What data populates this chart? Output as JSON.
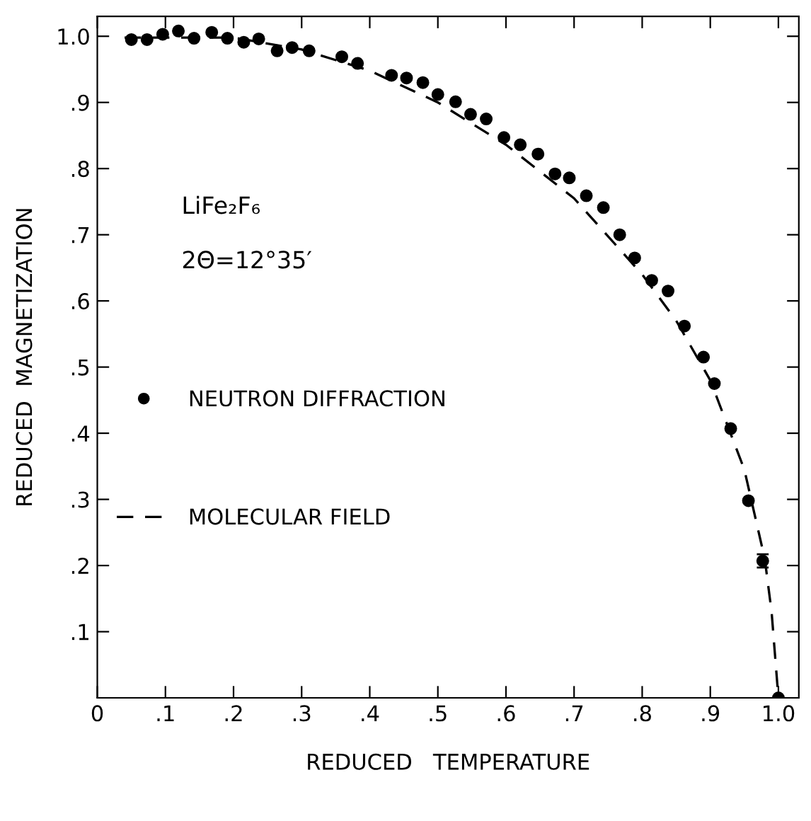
{
  "chart_data": {
    "type": "scatter",
    "xlabel": "REDUCED   TEMPERATURE",
    "ylabel": "REDUCED  MAGNETIZATION",
    "xlim": [
      0,
      1.03
    ],
    "ylim": [
      0,
      1.03
    ],
    "xticks": [
      0,
      {
        "value": 0.1,
        "label": ".1"
      },
      {
        "value": 0.2,
        "label": ".2"
      },
      {
        "value": 0.3,
        "label": ".3"
      },
      {
        "value": 0.4,
        "label": ".4"
      },
      {
        "value": 0.5,
        "label": ".5"
      },
      {
        "value": 0.6,
        "label": ".6"
      },
      {
        "value": 0.7,
        "label": ".7"
      },
      {
        "value": 0.8,
        "label": ".8"
      },
      {
        "value": 0.9,
        "label": ".9"
      },
      {
        "value": 1.0,
        "label": "1.0"
      }
    ],
    "yticks": [
      {
        "value": 0.1,
        "label": ".1"
      },
      {
        "value": 0.2,
        "label": ".2"
      },
      {
        "value": 0.3,
        "label": ".3"
      },
      {
        "value": 0.4,
        "label": ".4"
      },
      {
        "value": 0.5,
        "label": ".5"
      },
      {
        "value": 0.6,
        "label": ".6"
      },
      {
        "value": 0.7,
        "label": ".7"
      },
      {
        "value": 0.8,
        "label": ".8"
      },
      {
        "value": 0.9,
        "label": ".9"
      },
      {
        "value": 1.0,
        "label": "1.0"
      }
    ],
    "grid": false,
    "legend": "left",
    "annotations": [
      "LiFe₂F₆",
      "2Θ=12°35′"
    ],
    "series": [
      {
        "name": "NEUTRON DIFFRACTION",
        "color": "#000000",
        "marker": "circle",
        "x": [
          0.05,
          0.073,
          0.096,
          0.119,
          0.142,
          0.168,
          0.191,
          0.215,
          0.237,
          0.264,
          0.286,
          0.311,
          0.359,
          0.382,
          0.432,
          0.454,
          0.478,
          0.5,
          0.526,
          0.548,
          0.571,
          0.597,
          0.621,
          0.647,
          0.672,
          0.693,
          0.718,
          0.743,
          0.767,
          0.789,
          0.814,
          0.838,
          0.862,
          0.89,
          0.906,
          0.93,
          0.956,
          0.977,
          1.0
        ],
        "values": [
          0.995,
          0.995,
          1.003,
          1.008,
          0.997,
          1.006,
          0.997,
          0.991,
          0.996,
          0.978,
          0.983,
          0.978,
          0.969,
          0.959,
          0.941,
          0.937,
          0.93,
          0.912,
          0.901,
          0.882,
          0.875,
          0.847,
          0.836,
          0.822,
          0.792,
          0.786,
          0.759,
          0.741,
          0.7,
          0.665,
          0.631,
          0.615,
          0.562,
          0.515,
          0.475,
          0.407,
          0.298,
          0.207,
          0.0
        ],
        "errors": [
          null,
          null,
          null,
          null,
          null,
          null,
          null,
          null,
          null,
          null,
          null,
          null,
          null,
          null,
          null,
          null,
          null,
          null,
          null,
          null,
          null,
          null,
          null,
          null,
          null,
          null,
          null,
          null,
          null,
          null,
          null,
          null,
          null,
          null,
          null,
          null,
          null,
          0.01,
          null
        ]
      },
      {
        "name": "MOLECULAR FIELD",
        "type": "line",
        "color": "#000000",
        "line_style": "dashed",
        "marker": "none",
        "x": [
          0.04,
          0.2,
          0.3,
          0.4,
          0.5,
          0.6,
          0.7,
          0.8,
          0.85,
          0.9,
          0.95,
          0.98,
          0.99,
          1.0
        ],
        "values": [
          0.998,
          0.998,
          0.98,
          0.948,
          0.9,
          0.836,
          0.755,
          0.64,
          0.57,
          0.48,
          0.345,
          0.21,
          0.13,
          0.0
        ]
      }
    ]
  }
}
